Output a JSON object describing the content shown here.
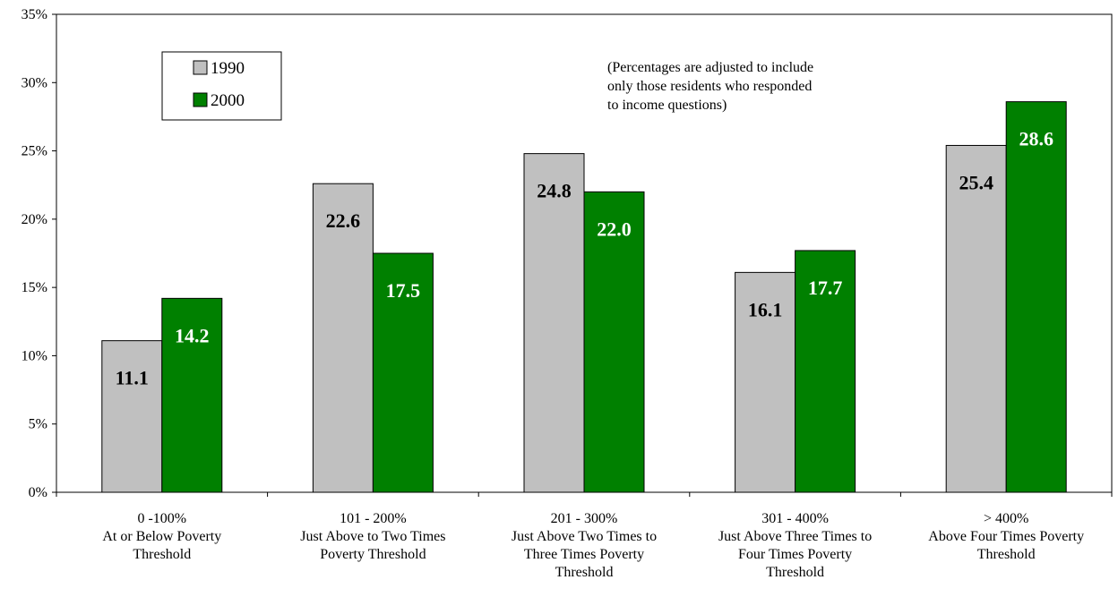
{
  "chart_data": {
    "type": "bar",
    "categories": [
      [
        "0 -100%",
        "At or Below Poverty",
        "Threshold"
      ],
      [
        "101 - 200%",
        "Just Above to Two Times",
        "Poverty Threshold"
      ],
      [
        "201 - 300%",
        "Just Above Two Times to",
        "Three Times Poverty",
        "Threshold"
      ],
      [
        "301 - 400%",
        "Just Above Three Times to",
        "Four Times Poverty",
        "Threshold"
      ],
      [
        "> 400%",
        "Above Four Times Poverty",
        "Threshold"
      ]
    ],
    "series": [
      {
        "name": "1990",
        "values": [
          11.1,
          22.6,
          24.8,
          16.1,
          25.4
        ],
        "labels": [
          "11.1",
          "22.6",
          "24.8",
          "16.1",
          "25.4"
        ],
        "color": "#c0c0c0",
        "label_color": "#000000"
      },
      {
        "name": "2000",
        "values": [
          14.2,
          17.5,
          22.0,
          17.7,
          28.6
        ],
        "labels": [
          "14.2",
          "17.5",
          "22.0",
          "17.7",
          "28.6"
        ],
        "color": "#008000",
        "label_color": "#ffffff"
      }
    ],
    "ylim": [
      0,
      35
    ],
    "yticks": [
      "0%",
      "5%",
      "10%",
      "15%",
      "20%",
      "25%",
      "30%",
      "35%"
    ],
    "legend_position": "top-left",
    "annotation": [
      "(Percentages are adjusted to include",
      "only those residents who responded",
      "to income questions)"
    ],
    "grid": false
  }
}
